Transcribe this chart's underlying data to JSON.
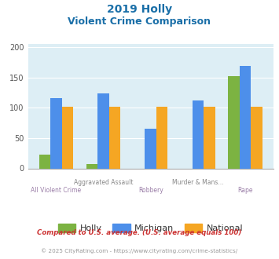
{
  "title_line1": "2019 Holly",
  "title_line2": "Violent Crime Comparison",
  "categories_line1": [
    "",
    "Aggravated Assault",
    "",
    "Murder & Mans...",
    ""
  ],
  "categories_line2": [
    "All Violent Crime",
    "",
    "Robbery",
    "",
    "Rape"
  ],
  "holly": [
    23,
    7,
    0,
    0,
    152
  ],
  "michigan": [
    116,
    123,
    66,
    112,
    169
  ],
  "national": [
    101,
    101,
    101,
    101,
    101
  ],
  "holly_color": "#7cb342",
  "michigan_color": "#4d8fea",
  "national_color": "#f5a623",
  "ylim": [
    0,
    205
  ],
  "yticks": [
    0,
    50,
    100,
    150,
    200
  ],
  "bg_color": "#ddeef5",
  "title_color": "#1a6fa8",
  "xlabel_top_color": "#888888",
  "xlabel_bot_color": "#9b7fa8",
  "footer_text1": "Compared to U.S. average. (U.S. average equals 100)",
  "footer_text2": "© 2025 CityRating.com - https://www.cityrating.com/crime-statistics/",
  "footer_color1": "#cc3333",
  "footer_color2": "#999999",
  "legend_labels": [
    "Holly",
    "Michigan",
    "National"
  ]
}
